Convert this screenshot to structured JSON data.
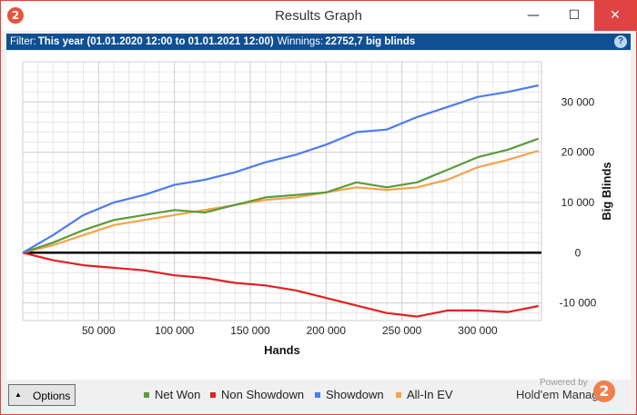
{
  "window": {
    "title": "Results Graph",
    "app_icon_glyph": "2",
    "controls": {
      "minimize": "—",
      "maximize": "☐",
      "close": "✕"
    }
  },
  "filter_bar": {
    "filter_label": "Filter:",
    "filter_value": "This year (01.01.2020 12:00 to 01.01.2021 12:00)",
    "winnings_label": "Winnings:",
    "winnings_value": "22752,7 big blinds",
    "help_glyph": "?"
  },
  "bottom_bar": {
    "options_label": "Options",
    "powered_by": "Powered by",
    "brand_name": "Hold'em Manager",
    "brand_glyph": "2"
  },
  "colors": {
    "net_won": "#5b9a3c",
    "non_showdown": "#e41f1f",
    "showdown": "#4d7cf0",
    "all_in_ev": "#f5a24a",
    "filter_bar_bg": "#0f4f93",
    "close_button": "#e04343"
  },
  "chart_data": {
    "type": "line",
    "xlabel": "Hands",
    "ylabel": "Big Blinds",
    "xlim": [
      0,
      342000
    ],
    "ylim": [
      -13500,
      38000
    ],
    "x_ticks": [
      50000,
      100000,
      150000,
      200000,
      250000,
      300000
    ],
    "x_tick_labels": [
      "50 000",
      "100 000",
      "150 000",
      "200 000",
      "250 000",
      "300 000"
    ],
    "y_ticks": [
      30000,
      20000,
      10000,
      0,
      -10000
    ],
    "y_tick_labels": [
      "30 000",
      "20 000",
      "10 000",
      "0",
      "-10 000"
    ],
    "grid": true,
    "legend_position": "bottom",
    "x": [
      0,
      20000,
      40000,
      60000,
      80000,
      100000,
      120000,
      140000,
      160000,
      180000,
      200000,
      220000,
      240000,
      260000,
      280000,
      300000,
      320000,
      340000
    ],
    "series": [
      {
        "name": "Net Won",
        "color": "#5b9a3c",
        "values": [
          0,
          2000,
          4500,
          6500,
          7500,
          8500,
          8000,
          9500,
          11000,
          11500,
          12000,
          14000,
          13000,
          14000,
          16500,
          19000,
          20500,
          22700
        ]
      },
      {
        "name": "Non Showdown",
        "color": "#e41f1f",
        "values": [
          0,
          -1500,
          -2500,
          -3000,
          -3500,
          -4500,
          -5000,
          -6000,
          -6500,
          -7500,
          -9000,
          -10500,
          -12000,
          -12700,
          -11500,
          -11500,
          -11800,
          -10600
        ]
      },
      {
        "name": "Showdown",
        "color": "#4d7cf0",
        "values": [
          0,
          3500,
          7500,
          10000,
          11500,
          13500,
          14500,
          16000,
          18000,
          19500,
          21500,
          24000,
          24500,
          27000,
          29000,
          31000,
          32000,
          33300
        ]
      },
      {
        "name": "All-In EV",
        "color": "#f5a24a",
        "values": [
          0,
          1500,
          3500,
          5500,
          6500,
          7500,
          8500,
          9500,
          10500,
          11000,
          12000,
          13000,
          12500,
          13000,
          14500,
          17000,
          18500,
          20300
        ]
      }
    ]
  }
}
